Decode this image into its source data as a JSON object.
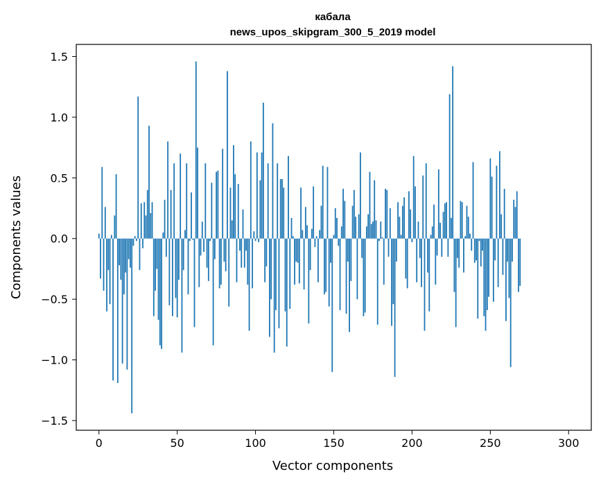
{
  "chart_data": {
    "type": "bar",
    "title": "кабала",
    "subtitle": "news_upos_skipgram_300_5_2019 model",
    "xlabel": "Vector components",
    "ylabel": "Components values",
    "xlim": [
      -14.5,
      314.5
    ],
    "ylim": [
      -1.58,
      1.6
    ],
    "xticks": [
      0,
      50,
      100,
      150,
      200,
      250,
      300
    ],
    "xtick_labels": [
      "0",
      "50",
      "100",
      "150",
      "200",
      "250",
      "300"
    ],
    "yticks": [
      -1.5,
      -1.0,
      -0.5,
      0.0,
      0.5,
      1.0,
      1.5
    ],
    "ytick_labels": [
      "−1.5",
      "−1.0",
      "−0.5",
      "0.0",
      "0.5",
      "1.0",
      "1.5"
    ],
    "bar_color": "#1f77b4",
    "grid": false,
    "values": [
      0.04,
      -0.33,
      0.59,
      -0.43,
      0.26,
      -0.6,
      -0.26,
      -0.54,
      0.03,
      -1.17,
      0.19,
      0.53,
      -1.19,
      -0.22,
      -0.34,
      -1.03,
      -0.46,
      -0.28,
      -1.08,
      -0.17,
      -0.24,
      -1.44,
      -0.06,
      0.02,
      -0.02,
      1.17,
      -0.26,
      0.29,
      -0.08,
      0.3,
      0.19,
      0.4,
      0.93,
      0.21,
      0.3,
      -0.64,
      -0.43,
      -0.25,
      -0.67,
      -0.88,
      -0.91,
      0.05,
      0.32,
      -0.15,
      0.8,
      -0.55,
      0.4,
      -0.64,
      0.62,
      -0.49,
      -0.65,
      -0.34,
      0.7,
      -0.94,
      -0.26,
      0.07,
      0.62,
      -0.46,
      -0.02,
      0.38,
      -0.01,
      -0.73,
      1.46,
      0.75,
      -0.4,
      -0.14,
      0.14,
      -0.11,
      0.62,
      -0.24,
      -0.35,
      -0.02,
      0.46,
      -0.88,
      -0.17,
      0.55,
      0.56,
      -0.41,
      -0.38,
      0.74,
      -0.19,
      -0.27,
      1.38,
      -0.56,
      0.42,
      0.15,
      0.77,
      0.53,
      -0.36,
      0.45,
      -0.1,
      -0.24,
      0.24,
      -0.24,
      -0.1,
      -0.38,
      -0.76,
      0.8,
      -0.41,
      0.06,
      -0.02,
      0.71,
      -0.03,
      0.48,
      0.71,
      1.12,
      -0.36,
      -0.23,
      0.62,
      -0.81,
      -0.5,
      0.95,
      -0.94,
      -0.59,
      0.62,
      -0.74,
      0.49,
      0.49,
      0.42,
      -0.6,
      -0.89,
      0.68,
      -0.58,
      0.17,
      0.02,
      -0.38,
      -0.19,
      -0.2,
      -0.37,
      0.42,
      0.07,
      -0.42,
      0.26,
      0.11,
      -0.7,
      -0.26,
      0.08,
      0.43,
      -0.07,
      0.02,
      -0.36,
      0.07,
      0.27,
      0.6,
      -0.46,
      -0.44,
      0.59,
      -0.56,
      -0.2,
      -1.1,
      0.03,
      0.25,
      0.17,
      -0.06,
      -0.59,
      0.1,
      0.41,
      0.31,
      -0.62,
      -0.19,
      -0.77,
      -0.35,
      0.27,
      0.4,
      0.18,
      -0.5,
      0.2,
      0.71,
      -0.16,
      -0.64,
      -0.61,
      0.1,
      0.2,
      0.55,
      0.12,
      0.14,
      0.48,
      0.15,
      -0.71,
      -0.02,
      0.14,
      0.01,
      -0.38,
      0.41,
      0.4,
      -0.15,
      0.25,
      -0.72,
      -0.54,
      -1.14,
      -0.19,
      0.3,
      0.18,
      0.03,
      0.27,
      0.34,
      -0.33,
      -0.41,
      0.39,
      0.24,
      -0.03,
      0.68,
      0.43,
      -0.36,
      0.14,
      -0.16,
      -0.4,
      0.52,
      -0.76,
      0.62,
      -0.28,
      -0.6,
      0.03,
      0.1,
      0.28,
      -0.38,
      -0.14,
      0.57,
      0.13,
      -0.15,
      0.22,
      0.29,
      0.3,
      -0.15,
      1.19,
      0.17,
      1.42,
      -0.44,
      -0.73,
      -0.16,
      -0.24,
      0.31,
      0.3,
      -0.28,
      0.02,
      0.27,
      0.18,
      0.04,
      -0.1,
      0.63,
      -0.2,
      -0.18,
      -0.66,
      -0.02,
      -0.23,
      -0.1,
      -0.64,
      -0.76,
      -0.59,
      -0.48,
      0.66,
      0.51,
      -0.52,
      -0.18,
      0.6,
      -0.4,
      0.72,
      0.2,
      -0.3,
      0.41,
      -0.68,
      -0.19,
      -0.49,
      -1.06,
      -0.19,
      0.32,
      0.26,
      0.39,
      -0.44,
      -0.39
    ]
  }
}
